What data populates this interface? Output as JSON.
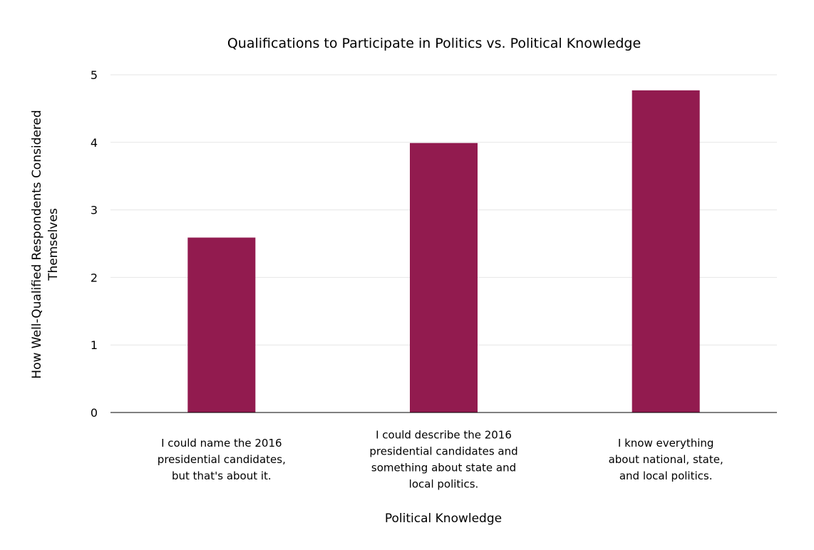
{
  "chart_data": {
    "type": "bar",
    "title": "Qualifications to Participate in Politics vs. Political Knowledge",
    "xlabel": "Political Knowledge",
    "ylabel": "How Well-Qualified Respondents Considered Themselves",
    "categories": [
      "I could name the 2016 presidential candidates, but that's about it.",
      "I could describe the 2016 presidential candidates and something about state and local politics.",
      "I know everything about national, state, and local politics."
    ],
    "category_lines": [
      [
        "I could name the 2016",
        "presidential candidates,",
        "but that's about it."
      ],
      [
        "I could describe the 2016",
        "presidential candidates and",
        "something about state and",
        "local politics."
      ],
      [
        "I know everything",
        "about national, state,",
        "and local politics."
      ]
    ],
    "ylabel_lines": [
      "How Well-Qualified Respondents Considered",
      "Themselves"
    ],
    "values": [
      2.59,
      3.99,
      4.77
    ],
    "ylim": [
      0,
      5
    ],
    "yticks": [
      0,
      1,
      2,
      3,
      4,
      5
    ],
    "grid": true,
    "legend": "none",
    "bar_color": "#921B4F",
    "gridline_color": "#E6E6E6",
    "axis_color": "#000000"
  }
}
